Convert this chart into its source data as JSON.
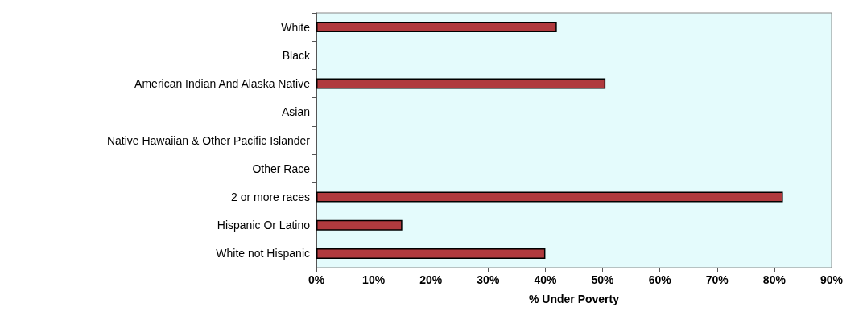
{
  "chart_data": {
    "type": "bar",
    "orientation": "horizontal",
    "xlabel": "% Under Poverty",
    "categories": [
      "White",
      "Black",
      "American Indian And Alaska Native",
      "Asian",
      "Native Hawaiian & Other Pacific Islander",
      "Other Race",
      "2 or more races",
      "Hispanic Or Latino",
      "White not Hispanic"
    ],
    "values": [
      42,
      null,
      50.5,
      null,
      null,
      null,
      81.5,
      15,
      40
    ],
    "color": "#b03a3e",
    "xlim": [
      0,
      90
    ],
    "xticks": [
      {
        "value": 0,
        "label": "0%"
      },
      {
        "value": 10,
        "label": "10%"
      },
      {
        "value": 20,
        "label": "20%"
      },
      {
        "value": 30,
        "label": "30%"
      },
      {
        "value": 40,
        "label": "40%"
      },
      {
        "value": 50,
        "label": "50%"
      },
      {
        "value": 60,
        "label": "60%"
      },
      {
        "value": 70,
        "label": "70%"
      },
      {
        "value": 80,
        "label": "80%"
      },
      {
        "value": 90,
        "label": "90%"
      }
    ],
    "grid": false
  }
}
